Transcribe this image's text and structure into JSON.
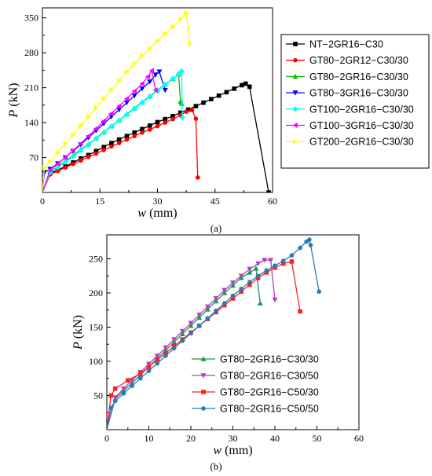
{
  "chart_data": [
    {
      "type": "line",
      "panel_label": "(a)",
      "xlabel_var": "w",
      "xlabel_unit": " (mm)",
      "ylabel_var": "P",
      "ylabel_unit": " (kN)",
      "xlim": [
        0,
        60
      ],
      "ylim": [
        0,
        370
      ],
      "xticks": [
        0,
        15,
        30,
        45,
        60
      ],
      "yticks": [
        70,
        140,
        210,
        280,
        350
      ],
      "legend_position": "right",
      "series": [
        {
          "name": "NT−2GR16−C30",
          "color": "#000000",
          "marker": "square",
          "points": [
            [
              0,
              0
            ],
            [
              2,
              38
            ],
            [
              4,
              45
            ],
            [
              6,
              52
            ],
            [
              8,
              60
            ],
            [
              10,
              68
            ],
            [
              12,
              75
            ],
            [
              14,
              83
            ],
            [
              16,
              91
            ],
            [
              18,
              99
            ],
            [
              20,
              106
            ],
            [
              22,
              113
            ],
            [
              24,
              120
            ],
            [
              26,
              127
            ],
            [
              28,
              134
            ],
            [
              30,
              141
            ],
            [
              32,
              147
            ],
            [
              34,
              153
            ],
            [
              36,
              160
            ],
            [
              38,
              166
            ],
            [
              40,
              173
            ],
            [
              42,
              180
            ],
            [
              44,
              187
            ],
            [
              46,
              194
            ],
            [
              48,
              201
            ],
            [
              50,
              208
            ],
            [
              52,
              215
            ],
            [
              53,
              218
            ],
            [
              54,
              212
            ],
            [
              59,
              0
            ]
          ]
        },
        {
          "name": "GT80−2GR12−C30/30",
          "color": "#ff0000",
          "marker": "circle",
          "points": [
            [
              0,
              0
            ],
            [
              2,
              36
            ],
            [
              4,
              43
            ],
            [
              6,
              50
            ],
            [
              8,
              57
            ],
            [
              10,
              64
            ],
            [
              12,
              71
            ],
            [
              14,
              78
            ],
            [
              16,
              85
            ],
            [
              18,
              92
            ],
            [
              20,
              99
            ],
            [
              22,
              106
            ],
            [
              24,
              113
            ],
            [
              26,
              120
            ],
            [
              28,
              126
            ],
            [
              30,
              133
            ],
            [
              32,
              140
            ],
            [
              34,
              147
            ],
            [
              36,
              155
            ],
            [
              37.5,
              162
            ],
            [
              39,
              165
            ],
            [
              40,
              148
            ],
            [
              40.5,
              30
            ]
          ]
        },
        {
          "name": "GT80−2GR16−C30/30",
          "color": "#00c000",
          "marker": "triangle-up",
          "points": [
            [
              0,
              0
            ],
            [
              2,
              42
            ],
            [
              4,
              52
            ],
            [
              6,
              63
            ],
            [
              8,
              74
            ],
            [
              10,
              86
            ],
            [
              12,
              97
            ],
            [
              14,
              109
            ],
            [
              16,
              121
            ],
            [
              18,
              133
            ],
            [
              20,
              145
            ],
            [
              22,
              157
            ],
            [
              24,
              169
            ],
            [
              26,
              181
            ],
            [
              28,
              193
            ],
            [
              30,
              205
            ],
            [
              32,
              217
            ],
            [
              34,
              228
            ],
            [
              35.5,
              237
            ],
            [
              36,
              182
            ],
            [
              36.3,
              178
            ]
          ]
        },
        {
          "name": "GT80−3GR16−C30/30",
          "color": "#0000ff",
          "marker": "triangle-down",
          "points": [
            [
              0,
              0
            ],
            [
              0.5,
              40
            ],
            [
              2,
              47
            ],
            [
              4,
              58
            ],
            [
              6,
              70
            ],
            [
              8,
              83
            ],
            [
              10,
              96
            ],
            [
              12,
              110
            ],
            [
              14,
              124
            ],
            [
              16,
              138
            ],
            [
              18,
              152
            ],
            [
              20,
              166
            ],
            [
              22,
              180
            ],
            [
              24,
              194
            ],
            [
              26,
              208
            ],
            [
              28,
              222
            ],
            [
              29.5,
              236
            ],
            [
              30.5,
              242
            ],
            [
              32,
              205
            ]
          ]
        },
        {
          "name": "GT100−2GR16−C30/30",
          "color": "#00ffff",
          "marker": "diamond",
          "points": [
            [
              0,
              0
            ],
            [
              2,
              40
            ],
            [
              4,
              50
            ],
            [
              6,
              61
            ],
            [
              8,
              72
            ],
            [
              10,
              84
            ],
            [
              12,
              96
            ],
            [
              14,
              108
            ],
            [
              16,
              120
            ],
            [
              18,
              132
            ],
            [
              20,
              144
            ],
            [
              22,
              156
            ],
            [
              24,
              168
            ],
            [
              26,
              180
            ],
            [
              28,
              192
            ],
            [
              30,
              204
            ],
            [
              32,
              216
            ],
            [
              34,
              228
            ],
            [
              35.5,
              238
            ],
            [
              36.3,
              243
            ],
            [
              36.5,
              150
            ]
          ]
        },
        {
          "name": "GT100−3GR16−C30/30",
          "color": "#ff00ff",
          "marker": "triangle-left",
          "points": [
            [
              0,
              0
            ],
            [
              2,
              45
            ],
            [
              4,
              57
            ],
            [
              6,
              70
            ],
            [
              8,
              84
            ],
            [
              10,
              98
            ],
            [
              12,
              113
            ],
            [
              14,
              128
            ],
            [
              16,
              143
            ],
            [
              18,
              158
            ],
            [
              20,
              173
            ],
            [
              22,
              188
            ],
            [
              24,
              203
            ],
            [
              26,
              218
            ],
            [
              27.5,
              232
            ],
            [
              28.5,
              244
            ],
            [
              29.5,
              205
            ]
          ]
        },
        {
          "name": "GT200−2GR16−C30/30",
          "color": "#ffff00",
          "marker": "triangle-right",
          "points": [
            [
              0,
              0
            ],
            [
              0.5,
              50
            ],
            [
              2,
              62
            ],
            [
              4,
              80
            ],
            [
              6,
              98
            ],
            [
              8,
              116
            ],
            [
              10,
              134
            ],
            [
              12,
              152
            ],
            [
              14,
              170
            ],
            [
              16,
              188
            ],
            [
              18,
              206
            ],
            [
              20,
              224
            ],
            [
              22,
              241
            ],
            [
              24,
              258
            ],
            [
              26,
              274
            ],
            [
              28,
              289
            ],
            [
              30,
              304
            ],
            [
              32,
              318
            ],
            [
              34,
              332
            ],
            [
              36,
              347
            ],
            [
              37.5,
              360
            ],
            [
              38.5,
              298
            ]
          ]
        }
      ]
    },
    {
      "type": "line",
      "panel_label": "(b)",
      "xlabel_var": "w",
      "xlabel_unit": " (mm)",
      "ylabel_var": "P",
      "ylabel_unit": " (kN)",
      "xlim": [
        0,
        60
      ],
      "ylim": [
        0,
        285
      ],
      "xticks": [
        0,
        10,
        20,
        30,
        40,
        50,
        60
      ],
      "yticks": [
        50,
        100,
        150,
        200,
        250
      ],
      "legend_position": "bottom-right",
      "series": [
        {
          "name": "GT80−2GR16−C30/30",
          "color": "#1a9850",
          "marker": "triangle-up",
          "points": [
            [
              0,
              0
            ],
            [
              2,
              45
            ],
            [
              4,
              57
            ],
            [
              6,
              68
            ],
            [
              8,
              80
            ],
            [
              10,
              92
            ],
            [
              12,
              104
            ],
            [
              14,
              116
            ],
            [
              16,
              128
            ],
            [
              18,
              140
            ],
            [
              20,
              152
            ],
            [
              22,
              164
            ],
            [
              24,
              176
            ],
            [
              26,
              188
            ],
            [
              28,
              200
            ],
            [
              30,
              211
            ],
            [
              32,
              222
            ],
            [
              34,
              230
            ],
            [
              35.5,
              236
            ],
            [
              36.5,
              185
            ]
          ]
        },
        {
          "name": "GT80−2GR16−C30/50",
          "color": "#b040c0",
          "marker": "triangle-down",
          "points": [
            [
              0,
              0
            ],
            [
              2,
              47
            ],
            [
              4,
              60
            ],
            [
              6,
              72
            ],
            [
              8,
              84
            ],
            [
              10,
              96
            ],
            [
              12,
              108
            ],
            [
              14,
              120
            ],
            [
              16,
              132
            ],
            [
              18,
              144
            ],
            [
              20,
              156
            ],
            [
              22,
              168
            ],
            [
              24,
              180
            ],
            [
              26,
              192
            ],
            [
              28,
              204
            ],
            [
              30,
              215
            ],
            [
              32,
              225
            ],
            [
              34,
              235
            ],
            [
              36,
              243
            ],
            [
              37.5,
              248
            ],
            [
              39,
              248
            ],
            [
              40,
              190
            ]
          ]
        },
        {
          "name": "GT80−2GR16−C50/30",
          "color": "#ff2020",
          "marker": "square",
          "points": [
            [
              0,
              0
            ],
            [
              1,
              50
            ],
            [
              2,
              60
            ],
            [
              5,
              72
            ],
            [
              8,
              82
            ],
            [
              10,
              92
            ],
            [
              12,
              102
            ],
            [
              14,
              112
            ],
            [
              16,
              122
            ],
            [
              18,
              132
            ],
            [
              20,
              142
            ],
            [
              22,
              152
            ],
            [
              24,
              162
            ],
            [
              26,
              172
            ],
            [
              28,
              182
            ],
            [
              30,
              192
            ],
            [
              32,
              202
            ],
            [
              34,
              212
            ],
            [
              36,
              222
            ],
            [
              38,
              230
            ],
            [
              40,
              237
            ],
            [
              42,
              243
            ],
            [
              44,
              246
            ],
            [
              46,
              173
            ]
          ]
        },
        {
          "name": "GT80−2GR16−C50/50",
          "color": "#2a7ab8",
          "marker": "circle",
          "points": [
            [
              0,
              0
            ],
            [
              1,
              32
            ],
            [
              2,
              42
            ],
            [
              4,
              53
            ],
            [
              6,
              64
            ],
            [
              8,
              75
            ],
            [
              10,
              86
            ],
            [
              12,
              97
            ],
            [
              14,
              108
            ],
            [
              16,
              119
            ],
            [
              18,
              130
            ],
            [
              20,
              141
            ],
            [
              22,
              152
            ],
            [
              24,
              163
            ],
            [
              26,
              174
            ],
            [
              28,
              185
            ],
            [
              30,
              196
            ],
            [
              32,
              206
            ],
            [
              34,
              216
            ],
            [
              36,
              225
            ],
            [
              38,
              233
            ],
            [
              40,
              240
            ],
            [
              42,
              247
            ],
            [
              44,
              255
            ],
            [
              46,
              266
            ],
            [
              47.5,
              275
            ],
            [
              48.2,
              278
            ],
            [
              48.5,
              270
            ],
            [
              50.5,
              202
            ]
          ]
        }
      ]
    }
  ]
}
